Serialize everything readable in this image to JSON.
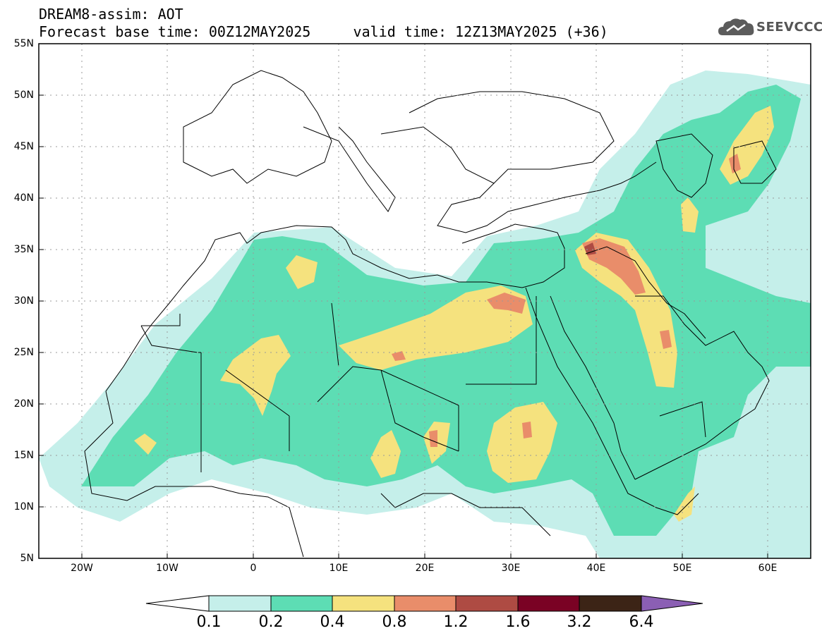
{
  "header": {
    "title_line1": "DREAM8-assim: AOT",
    "base_time_label": "Forecast base time: 00Z12MAY2025",
    "valid_time_label": "valid time: 12Z13MAY2025 (+36)",
    "logo_text": "SEEVCCC"
  },
  "map": {
    "variable": "AOT",
    "region": {
      "lon_min": -25,
      "lon_max": 65,
      "lat_min": 5,
      "lat_max": 55
    },
    "lat_ticks": [
      "5N",
      "10N",
      "15N",
      "20N",
      "25N",
      "30N",
      "35N",
      "40N",
      "45N",
      "50N",
      "55N"
    ],
    "lon_ticks": [
      "20W",
      "10W",
      "0",
      "10E",
      "20E",
      "30E",
      "40E",
      "50E",
      "60E"
    ],
    "plumes": [
      {
        "lon": 5,
        "lat": 22,
        "rx": 9,
        "ry": 10,
        "level": 1
      },
      {
        "lon": 20,
        "lat": 24,
        "rx": 12,
        "ry": 8,
        "level": 1
      },
      {
        "lon": 31,
        "lat": 18,
        "rx": 6,
        "ry": 6,
        "level": 2
      },
      {
        "lon": 44,
        "lat": 30,
        "rx": 6,
        "ry": 9,
        "level": 2
      },
      {
        "lon": 57,
        "lat": 44,
        "rx": 5,
        "ry": 7,
        "level": 2
      }
    ]
  },
  "colorbar": {
    "labels": [
      "0.1",
      "0.2",
      "0.4",
      "0.8",
      "1.2",
      "1.6",
      "3.2",
      "6.4"
    ],
    "colors": [
      "#c5efea",
      "#5dddb4",
      "#f5e27e",
      "#e98d6a",
      "#ae4b43",
      "#7a0224",
      "#3c2416",
      "#8b5fb4"
    ]
  }
}
